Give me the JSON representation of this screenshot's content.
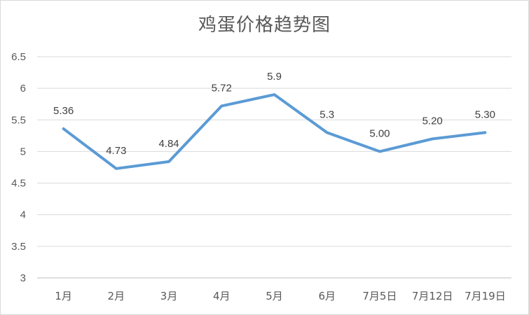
{
  "chart_data": {
    "type": "line",
    "title": "鸡蛋价格趋势图",
    "xlabel": "",
    "ylabel": "",
    "categories": [
      "1月",
      "2月",
      "3月",
      "4月",
      "5月",
      "6月",
      "7月5日",
      "7月12日",
      "7月19日"
    ],
    "series": [
      {
        "values": [
          5.36,
          4.73,
          4.84,
          5.72,
          5.9,
          5.3,
          5.0,
          5.2,
          5.3
        ],
        "labels": [
          "5.36",
          "4.73",
          "4.84",
          "5.72",
          "5.9",
          "5.3",
          "5.00",
          "5.20",
          "5.30"
        ],
        "color": "#5b9bd5"
      }
    ],
    "ylim": [
      3,
      6.5
    ],
    "yticks": [
      "3",
      "3.5",
      "4",
      "4.5",
      "5",
      "5.5",
      "6",
      "6.5"
    ],
    "grid": true,
    "legend": "none"
  }
}
